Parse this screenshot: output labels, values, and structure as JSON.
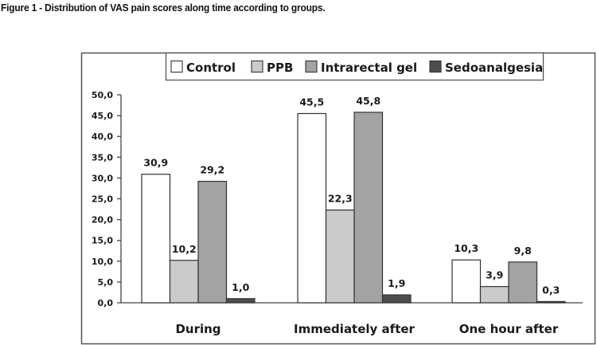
{
  "caption": "Figure 1 - Distribution of VAS pain scores along time according to groups.",
  "chart_data": {
    "type": "bar",
    "title": "",
    "xlabel": "",
    "ylabel": "",
    "ylim": [
      0,
      50
    ],
    "yticks": [
      0,
      5,
      10,
      15,
      20,
      25,
      30,
      35,
      40,
      45,
      50
    ],
    "ytick_labels": [
      "0,0",
      "5,0",
      "10,0",
      "15,0",
      "20,0",
      "25,0",
      "30,0",
      "35,0",
      "40,0",
      "45,0",
      "50,0"
    ],
    "categories": [
      "During",
      "Immediately after",
      "One hour after"
    ],
    "legend_position": "top",
    "grid": false,
    "series": [
      {
        "name": "Control",
        "color": "#ffffff",
        "values": [
          30.9,
          45.5,
          10.3
        ],
        "labels": [
          "30,9",
          "45,5",
          "10,3"
        ]
      },
      {
        "name": "PPB",
        "color": "#cbcbcb",
        "values": [
          10.2,
          22.3,
          3.9
        ],
        "labels": [
          "10,2",
          "22,3",
          "3,9"
        ]
      },
      {
        "name": "Intrarectal gel",
        "color": "#a3a3a3",
        "values": [
          29.2,
          45.8,
          9.8
        ],
        "labels": [
          "29,2",
          "45,8",
          "9,8"
        ]
      },
      {
        "name": "Sedoanalgesia",
        "color": "#4d4d4d",
        "values": [
          1.0,
          1.9,
          0.3
        ],
        "labels": [
          "1,0",
          "1,9",
          "0,3"
        ]
      }
    ]
  }
}
